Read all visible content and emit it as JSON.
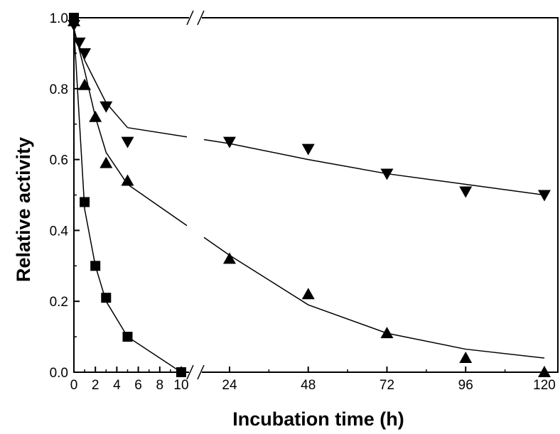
{
  "chart_data": {
    "type": "line",
    "title": "",
    "xlabel": "Incubation time (h)",
    "ylabel": "Relative activity",
    "ylim": [
      0,
      1.0
    ],
    "x_axis_break": "broken axis between 10 and 24 h",
    "x_ticks_left": [
      0,
      2,
      4,
      6,
      8,
      10
    ],
    "x_ticks_right": [
      24,
      48,
      72,
      96,
      120
    ],
    "x_tick_labels": [
      "0",
      "2",
      "4",
      "6",
      "8",
      "10",
      "24",
      "48",
      "72",
      "96",
      "120"
    ],
    "y_ticks": [
      0.0,
      0.2,
      0.4,
      0.6,
      0.8,
      1.0
    ],
    "y_tick_labels": [
      "0.0",
      "0.2",
      "0.4",
      "0.6",
      "0.8",
      "1.0"
    ],
    "grid": false,
    "legend": "none",
    "series": [
      {
        "marker": "square",
        "color": "#000000",
        "points": [
          [
            0,
            1.0
          ],
          [
            1,
            0.48
          ],
          [
            2,
            0.3
          ],
          [
            3,
            0.21
          ],
          [
            5,
            0.1
          ],
          [
            10,
            0.0
          ]
        ],
        "fit": [
          [
            0,
            0.97
          ],
          [
            1,
            0.46
          ],
          [
            2,
            0.3
          ],
          [
            3,
            0.2
          ],
          [
            5,
            0.1
          ],
          [
            10,
            0.0
          ]
        ]
      },
      {
        "marker": "triangle-up",
        "color": "#000000",
        "points": [
          [
            0,
            0.99
          ],
          [
            1,
            0.81
          ],
          [
            2,
            0.72
          ],
          [
            3,
            0.59
          ],
          [
            5,
            0.54
          ],
          [
            24,
            0.32
          ],
          [
            48,
            0.22
          ],
          [
            72,
            0.11
          ],
          [
            96,
            0.04
          ],
          [
            120,
            0.0
          ]
        ],
        "fit": [
          [
            0,
            0.97
          ],
          [
            1,
            0.85
          ],
          [
            2,
            0.72
          ],
          [
            3,
            0.62
          ],
          [
            5,
            0.53
          ],
          [
            24,
            0.33
          ],
          [
            48,
            0.19
          ],
          [
            72,
            0.11
          ],
          [
            96,
            0.065
          ],
          [
            120,
            0.04
          ]
        ]
      },
      {
        "marker": "triangle-down",
        "color": "#000000",
        "points": [
          [
            0,
            0.98
          ],
          [
            0.5,
            0.93
          ],
          [
            1,
            0.9
          ],
          [
            3,
            0.75
          ],
          [
            5,
            0.65
          ],
          [
            24,
            0.65
          ],
          [
            48,
            0.63
          ],
          [
            72,
            0.56
          ],
          [
            96,
            0.51
          ],
          [
            120,
            0.5
          ]
        ],
        "fit": [
          [
            0,
            0.96
          ],
          [
            1,
            0.88
          ],
          [
            3,
            0.76
          ],
          [
            5,
            0.69
          ],
          [
            24,
            0.645
          ],
          [
            48,
            0.6
          ],
          [
            72,
            0.56
          ],
          [
            96,
            0.53
          ],
          [
            120,
            0.5
          ]
        ]
      }
    ]
  }
}
